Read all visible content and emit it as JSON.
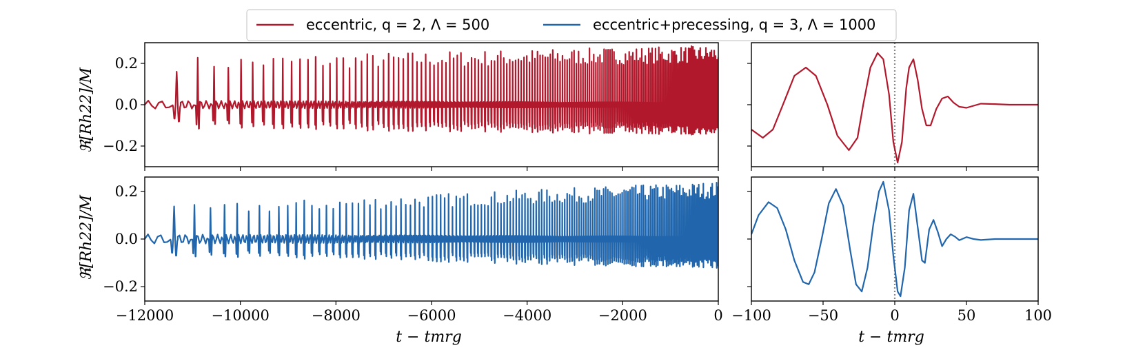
{
  "chart_data": {
    "type": "line",
    "legend": {
      "placement": "top-center",
      "entries": [
        {
          "label": "eccentric, q = 2, Λ = 500",
          "color": "#b2182b"
        },
        {
          "label": "eccentric+precessing, q = 3, Λ = 1000",
          "color": "#2166ac"
        }
      ]
    },
    "panels": [
      {
        "id": "top-left",
        "series": "eccentric, q = 2, Λ = 500",
        "color": "#b2182b",
        "xlim": [
          -12000,
          0
        ],
        "ylim": [
          -0.3,
          0.3
        ],
        "yticks": [
          -0.2,
          0.0,
          0.2
        ],
        "ytick_labels": [
          "−0.2",
          "0.0",
          "0.2"
        ],
        "ylabel": "ℜ[Rh22]/M",
        "waveform": {
          "start": -12000,
          "end": 0,
          "period_start": 750,
          "period_end": 28,
          "pulse_peak_start": 0.2,
          "pulse_peak_end": 0.25,
          "background": 0.02
        }
      },
      {
        "id": "top-right",
        "series": "eccentric, q = 2, Λ = 500",
        "color": "#b2182b",
        "xlim": [
          -100,
          100
        ],
        "ylim": [
          -0.3,
          0.3
        ],
        "merger_line": 0,
        "samples": [
          [
            -100,
            -0.12
          ],
          [
            -92,
            -0.16
          ],
          [
            -85,
            -0.12
          ],
          [
            -78,
            0.0
          ],
          [
            -70,
            0.14
          ],
          [
            -62,
            0.18
          ],
          [
            -55,
            0.14
          ],
          [
            -47,
            0.0
          ],
          [
            -40,
            -0.15
          ],
          [
            -32,
            -0.22
          ],
          [
            -26,
            -0.16
          ],
          [
            -22,
            0.0
          ],
          [
            -17,
            0.18
          ],
          [
            -12,
            0.25
          ],
          [
            -8,
            0.22
          ],
          [
            -4,
            0.05
          ],
          [
            -1,
            -0.18
          ],
          [
            2,
            -0.28
          ],
          [
            5,
            -0.18
          ],
          [
            8,
            0.08
          ],
          [
            10,
            0.18
          ],
          [
            13,
            0.22
          ],
          [
            16,
            0.12
          ],
          [
            19,
            -0.02
          ],
          [
            22,
            -0.1
          ],
          [
            25,
            -0.1
          ],
          [
            29,
            -0.02
          ],
          [
            33,
            0.03
          ],
          [
            37,
            0.04
          ],
          [
            41,
            0.01
          ],
          [
            45,
            -0.01
          ],
          [
            50,
            -0.015
          ],
          [
            55,
            -0.005
          ],
          [
            60,
            0.005
          ],
          [
            70,
            0.003
          ],
          [
            80,
            0.0
          ],
          [
            100,
            0.0
          ]
        ]
      },
      {
        "id": "bottom-left",
        "series": "eccentric+precessing, q = 3, Λ = 1000",
        "color": "#2166ac",
        "xlim": [
          -12000,
          0
        ],
        "ylim": [
          -0.26,
          0.26
        ],
        "yticks": [
          -0.2,
          0.0,
          0.2
        ],
        "ytick_labels": [
          "−0.2",
          "0.0",
          "0.2"
        ],
        "ylabel": "ℜ[Rh22]/M",
        "xticks": [
          -12000,
          -10000,
          -8000,
          -6000,
          -4000,
          -2000,
          0
        ],
        "xtick_labels": [
          "−12000",
          "−10000",
          "−8000",
          "−6000",
          "−4000",
          "−2000",
          "0"
        ],
        "xlabel": "t − tmrg",
        "waveform": {
          "start": -12000,
          "end": 0,
          "period_start": 690,
          "period_end": 30,
          "pulse_peak_start": 0.12,
          "pulse_peak_end": 0.21,
          "background": 0.02
        }
      },
      {
        "id": "bottom-right",
        "series": "eccentric+precessing, q = 3, Λ = 1000",
        "color": "#2166ac",
        "xlim": [
          -100,
          100
        ],
        "ylim": [
          -0.26,
          0.26
        ],
        "merger_line": 0,
        "xticks": [
          -100,
          -50,
          0,
          50,
          100
        ],
        "xtick_labels": [
          "−100",
          "−50",
          "0",
          "50",
          "100"
        ],
        "xlabel": "t − tmrg",
        "samples": [
          [
            -100,
            0.02
          ],
          [
            -95,
            0.1
          ],
          [
            -88,
            0.155
          ],
          [
            -82,
            0.13
          ],
          [
            -76,
            0.04
          ],
          [
            -70,
            -0.09
          ],
          [
            -64,
            -0.18
          ],
          [
            -60,
            -0.19
          ],
          [
            -56,
            -0.14
          ],
          [
            -51,
            0.0
          ],
          [
            -46,
            0.15
          ],
          [
            -41,
            0.21
          ],
          [
            -36,
            0.14
          ],
          [
            -31,
            -0.05
          ],
          [
            -27,
            -0.19
          ],
          [
            -23,
            -0.22
          ],
          [
            -19,
            -0.12
          ],
          [
            -15,
            0.06
          ],
          [
            -11,
            0.2
          ],
          [
            -8,
            0.24
          ],
          [
            -4,
            0.12
          ],
          [
            -1,
            -0.07
          ],
          [
            2,
            -0.22
          ],
          [
            4,
            -0.24
          ],
          [
            7,
            -0.12
          ],
          [
            10,
            0.12
          ],
          [
            13,
            0.19
          ],
          [
            16,
            0.05
          ],
          [
            19,
            -0.09
          ],
          [
            21,
            -0.1
          ],
          [
            24,
            0.04
          ],
          [
            27,
            0.08
          ],
          [
            30,
            0.03
          ],
          [
            33,
            -0.03
          ],
          [
            36,
            0.0
          ],
          [
            39,
            0.02
          ],
          [
            42,
            0.01
          ],
          [
            45,
            -0.005
          ],
          [
            50,
            0.008
          ],
          [
            55,
            0.0
          ],
          [
            60,
            -0.004
          ],
          [
            70,
            0.0
          ],
          [
            100,
            0.0
          ]
        ]
      }
    ],
    "axis_text": {
      "ylabel": "ℜ[Rh22]/M",
      "xlabel": "t − tmrg"
    }
  }
}
